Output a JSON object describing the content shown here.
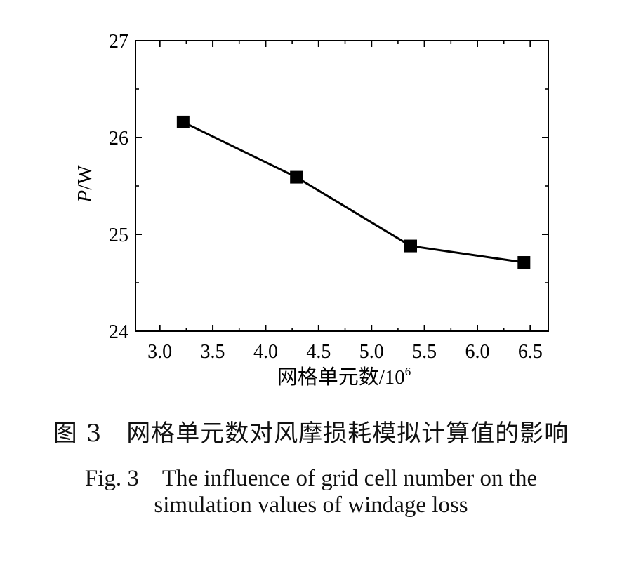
{
  "chart_data": {
    "type": "line",
    "x": [
      3.22,
      4.29,
      5.37,
      6.44
    ],
    "series": [
      {
        "values": [
          26.16,
          25.59,
          24.88,
          24.71
        ],
        "marker": "square",
        "color": "#000000"
      }
    ],
    "xlabel": "网格单元数/10",
    "xlabel_superscript": "6",
    "ylabel_italic": "P",
    "ylabel": "/W",
    "xlim": [
      2.77,
      6.67
    ],
    "ylim": [
      24,
      27
    ],
    "xticks": [
      "3.0",
      "3.5",
      "4.0",
      "4.5",
      "5.0",
      "5.5",
      "6.0",
      "6.5"
    ],
    "yticks": [
      "24",
      "25",
      "26",
      "27"
    ],
    "grid": false,
    "legend": "none"
  },
  "caption": {
    "chinese": "图 3　网格单元数对风摩损耗模拟计算值的影响",
    "english_line1": "Fig. 3　The influence of grid cell number on the",
    "english_line2": "simulation values of windage loss"
  }
}
